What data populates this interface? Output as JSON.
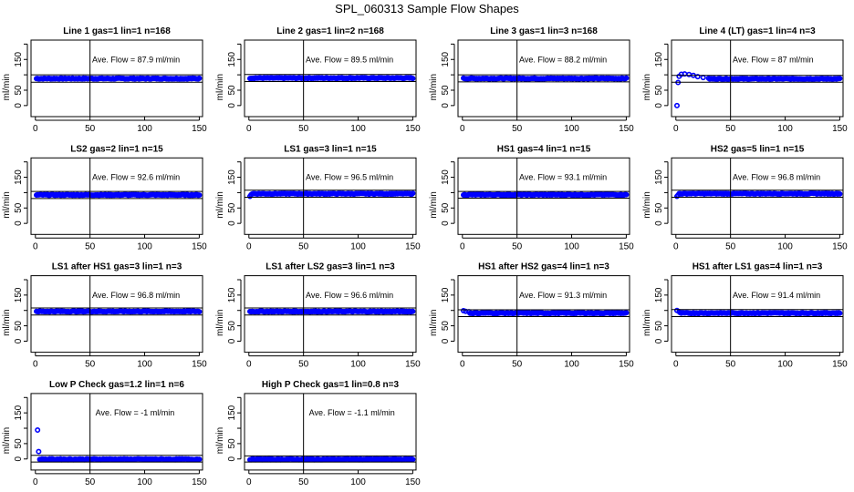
{
  "chart_data": {
    "type": "scatter",
    "title": "SPL_060313  Sample Flow Shapes",
    "ylabel": "ml/min",
    "xlim": [
      -4,
      153
    ],
    "ylim": [
      -36,
      213
    ],
    "x_ticks": [
      "0",
      "50",
      "100",
      "150"
    ],
    "y_ticks": [
      "0",
      "50",
      "150"
    ],
    "y_tick_marks": [
      0,
      50,
      100,
      150,
      200
    ],
    "reference_x": 50,
    "color": "#0000ff",
    "n_points": 150,
    "panels": [
      {
        "title": "Line 1 gas=1 lin=1 n=168",
        "ave_label": "Ave. Flow =  87.9  ml/min",
        "ave": 87.9,
        "limits": [
          76,
          100
        ],
        "initial": [],
        "steady": 87.9
      },
      {
        "title": "Line 2 gas=1 lin=2 n=168",
        "ave_label": "Ave. Flow =  89.5  ml/min",
        "ave": 89.5,
        "limits": [
          78,
          101
        ],
        "initial": [],
        "steady": 89.5
      },
      {
        "title": "Line 3 gas=1 lin=3 n=168",
        "ave_label": "Ave. Flow =  88.2  ml/min",
        "ave": 88.2,
        "limits": [
          77,
          100
        ],
        "initial": [],
        "steady": 88.2
      },
      {
        "title": "Line 4 (LT) gas=1 lin=4 n=3",
        "ave_label": "Ave. Flow =  87  ml/min",
        "ave": 87,
        "limits": [
          76,
          98
        ],
        "initial": [
          [
            1,
            0
          ],
          [
            2,
            75
          ],
          [
            3,
            95
          ],
          [
            5,
            102
          ],
          [
            8,
            103
          ],
          [
            12,
            101
          ],
          [
            16,
            98
          ],
          [
            20,
            94
          ],
          [
            25,
            91
          ],
          [
            30,
            89
          ]
        ],
        "steady": 87
      },
      {
        "title": "LS2 gas=2 lin=1 n=15",
        "ave_label": "Ave. Flow =  92.6  ml/min",
        "ave": 92.6,
        "limits": [
          81,
          104
        ],
        "initial": [],
        "steady": 92.6
      },
      {
        "title": "LS1 gas=3 lin=1 n=15",
        "ave_label": "Ave. Flow =  96.5  ml/min",
        "ave": 96.5,
        "limits": [
          85,
          108
        ],
        "initial": [
          [
            1,
            88
          ],
          [
            2,
            93
          ]
        ],
        "steady": 96.5
      },
      {
        "title": "HS1 gas=4 lin=1 n=15",
        "ave_label": "Ave. Flow =  93.1  ml/min",
        "ave": 93.1,
        "limits": [
          82,
          104
        ],
        "initial": [],
        "steady": 93.1
      },
      {
        "title": "HS2 gas=5 lin=1 n=15",
        "ave_label": "Ave. Flow =  96.8  ml/min",
        "ave": 96.8,
        "limits": [
          85,
          108
        ],
        "initial": [
          [
            1,
            88
          ],
          [
            2,
            92
          ]
        ],
        "steady": 96.8
      },
      {
        "title": "LS1 after HS1 gas=3 lin=1 n=3",
        "ave_label": "Ave. Flow =  96.8  ml/min",
        "ave": 96.8,
        "limits": [
          85,
          108
        ],
        "initial": [],
        "steady": 96.8
      },
      {
        "title": "LS1 after LS2 gas=3 lin=1 n=3",
        "ave_label": "Ave. Flow =  96.6  ml/min",
        "ave": 96.6,
        "limits": [
          85,
          108
        ],
        "initial": [],
        "steady": 96.6
      },
      {
        "title": "HS1 after HS2 gas=4 lin=1 n=3",
        "ave_label": "Ave. Flow =  91.3  ml/min",
        "ave": 91.3,
        "limits": [
          80,
          102
        ],
        "initial": [
          [
            1,
            99
          ],
          [
            3,
            97
          ],
          [
            6,
            96
          ]
        ],
        "steady": 91.3
      },
      {
        "title": "HS1 after LS1 gas=4 lin=1 n=3",
        "ave_label": "Ave. Flow =  91.4  ml/min",
        "ave": 91.4,
        "limits": [
          80,
          103
        ],
        "initial": [
          [
            1,
            100
          ],
          [
            3,
            96
          ]
        ],
        "steady": 91.4
      },
      {
        "title": "Low P Check gas=1.2 lin=1 n=6",
        "ave_label": "Ave. Flow =  -1  ml/min",
        "ave": -1,
        "limits": [
          -10,
          12
        ],
        "initial": [
          [
            2,
            94
          ],
          [
            3,
            24
          ]
        ],
        "steady": -1
      },
      {
        "title": "High P Check gas=1 lin=0.8 n=3",
        "ave_label": "Ave. Flow =  -1.1  ml/min",
        "ave": -1.1,
        "limits": [
          -10,
          10
        ],
        "initial": [],
        "steady": -1.1
      }
    ]
  }
}
